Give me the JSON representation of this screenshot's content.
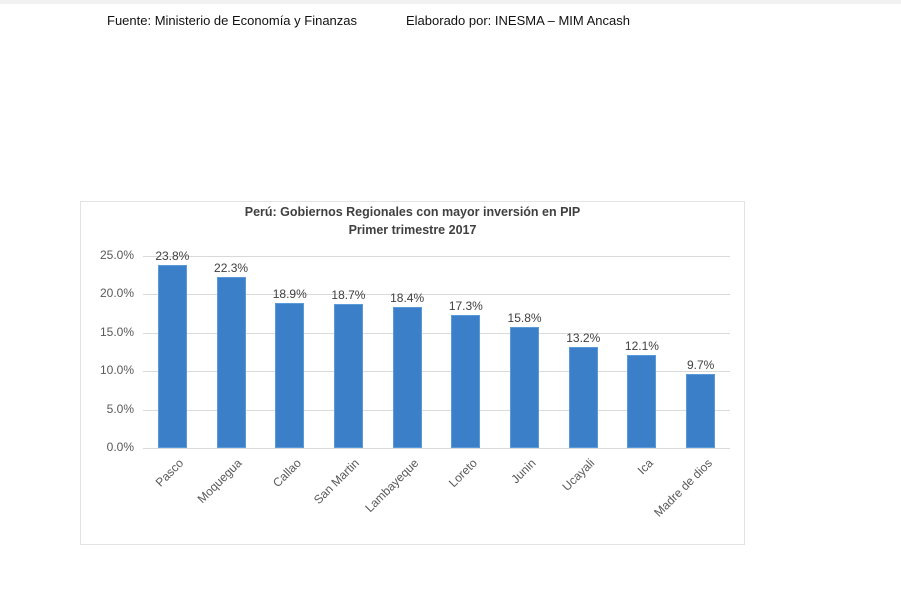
{
  "header": {
    "source": "Fuente: Ministerio de Economía y Finanzas",
    "author": "Elaborado por: INESMA – MIM Ancash"
  },
  "chart_data": {
    "type": "bar",
    "title": "Perú: Gobiernos Regionales con mayor inversión en PIP",
    "subtitle": "Primer trimestre 2017",
    "xlabel": "",
    "ylabel": "",
    "ylim": [
      0,
      25
    ],
    "yticks": [
      "0.0%",
      "5.0%",
      "10.0%",
      "15.0%",
      "20.0%",
      "25.0%"
    ],
    "grid": true,
    "legend": "none",
    "bar_color": "#3a7fc8",
    "categories": [
      "Pasco",
      "Moquegua",
      "Callao",
      "San Martin",
      "Lambayeque",
      "Loreto",
      "Junin",
      "Ucayali",
      "Ica",
      "Madre de dios"
    ],
    "values": [
      23.8,
      22.3,
      18.9,
      18.7,
      18.4,
      17.3,
      15.8,
      13.2,
      12.1,
      9.7
    ],
    "labels": [
      "23.8%",
      "22.3%",
      "18.9%",
      "18.7%",
      "18.4%",
      "17.3%",
      "15.8%",
      "13.2%",
      "12.1%",
      "9.7%"
    ]
  }
}
